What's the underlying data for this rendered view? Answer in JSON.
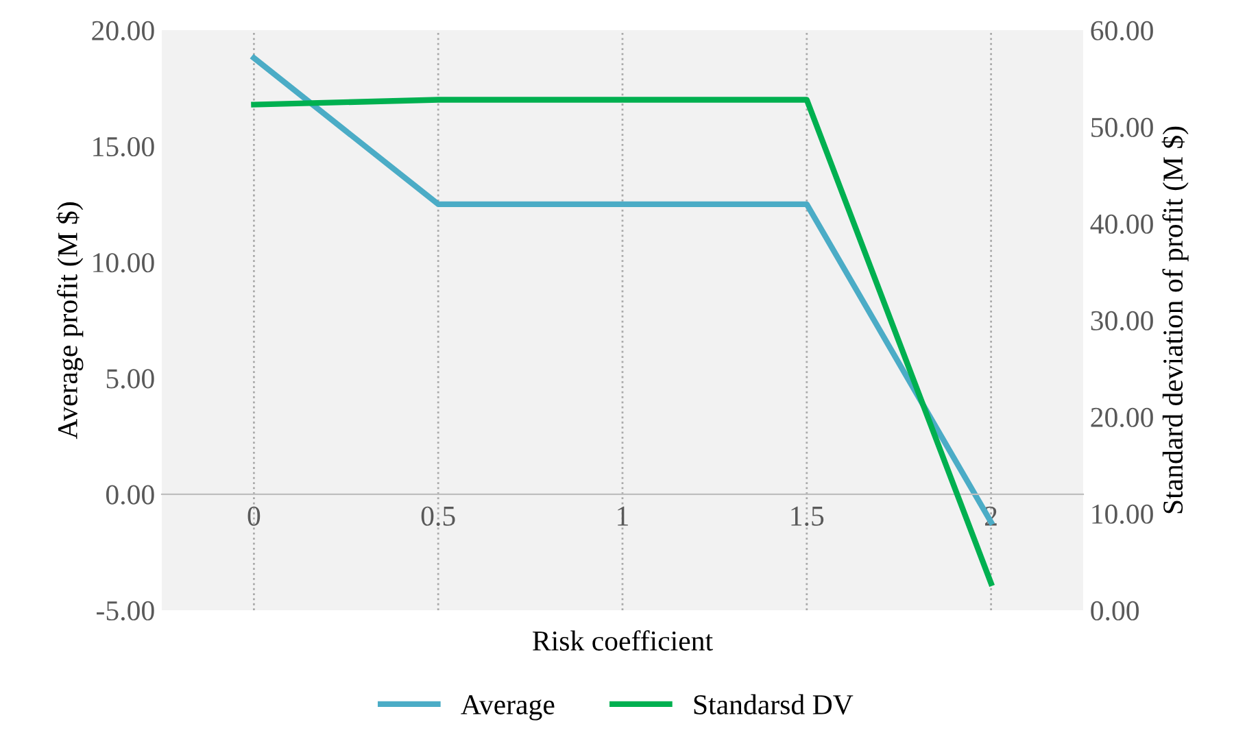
{
  "chart_data": {
    "type": "line",
    "xlabel": "Risk coefficient",
    "ylabel": "Average profit (M $)",
    "y2label": "Standard deviation of profit (M $)",
    "categories": [
      "0",
      "0.5",
      "1",
      "1.5",
      "2"
    ],
    "series": [
      {
        "name": "Average",
        "color": "#4bacc6",
        "values": [
          18.8,
          12.5,
          12.5,
          12.5,
          -1.2
        ]
      },
      {
        "name": "Standarsd DV",
        "color": "#00b050",
        "axis": "y2",
        "values": [
          52.3,
          52.8,
          52.8,
          52.8,
          2.8
        ]
      }
    ],
    "ylim": [
      -5,
      20
    ],
    "yticks": [
      {
        "value": -5,
        "label": "-5.00"
      },
      {
        "value": 0,
        "label": "0.00"
      },
      {
        "value": 5,
        "label": "5.00"
      },
      {
        "value": 10,
        "label": "10.00"
      },
      {
        "value": 15,
        "label": "15.00"
      },
      {
        "value": 20,
        "label": "20.00"
      }
    ],
    "y2lim": [
      0,
      60
    ],
    "y2ticks": [
      {
        "value": 0,
        "label": "0.00"
      },
      {
        "value": 10,
        "label": "10.00"
      },
      {
        "value": 20,
        "label": "20.00"
      },
      {
        "value": 30,
        "label": "30.00"
      },
      {
        "value": 40,
        "label": "40.00"
      },
      {
        "value": 50,
        "label": "50.00"
      },
      {
        "value": 60,
        "label": "60.00"
      }
    ],
    "grid": "x",
    "legend": "bottom",
    "marker": "none",
    "line_style": "solid"
  }
}
